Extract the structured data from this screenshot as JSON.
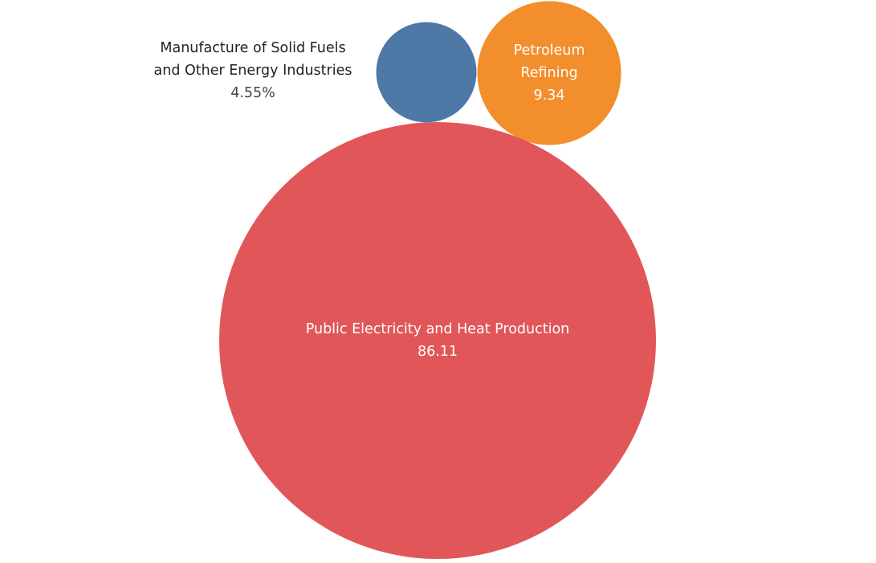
{
  "chart_data": {
    "type": "bubble",
    "series": [
      {
        "name_lines": [
          "Manufacture of Solid Fuels",
          "and Other Energy Industries"
        ],
        "value": 4.55,
        "value_label": "4.55%",
        "color": "#4e79a7",
        "label_placement": "outside-left",
        "label_color": "#222222",
        "value_color": "#444444"
      },
      {
        "name_lines": [
          "Petroleum",
          "Refining"
        ],
        "value": 9.34,
        "value_label": "9.34",
        "color": "#f28e2b",
        "label_placement": "inside",
        "label_color": "#ffffff",
        "value_color": "#ffffff"
      },
      {
        "name_lines": [
          "Public Electricity and Heat Production"
        ],
        "value": 86.11,
        "value_label": "86.11",
        "color": "#e15759",
        "label_placement": "inside",
        "label_color": "#ffffff",
        "value_color": "#ffffff"
      }
    ]
  }
}
